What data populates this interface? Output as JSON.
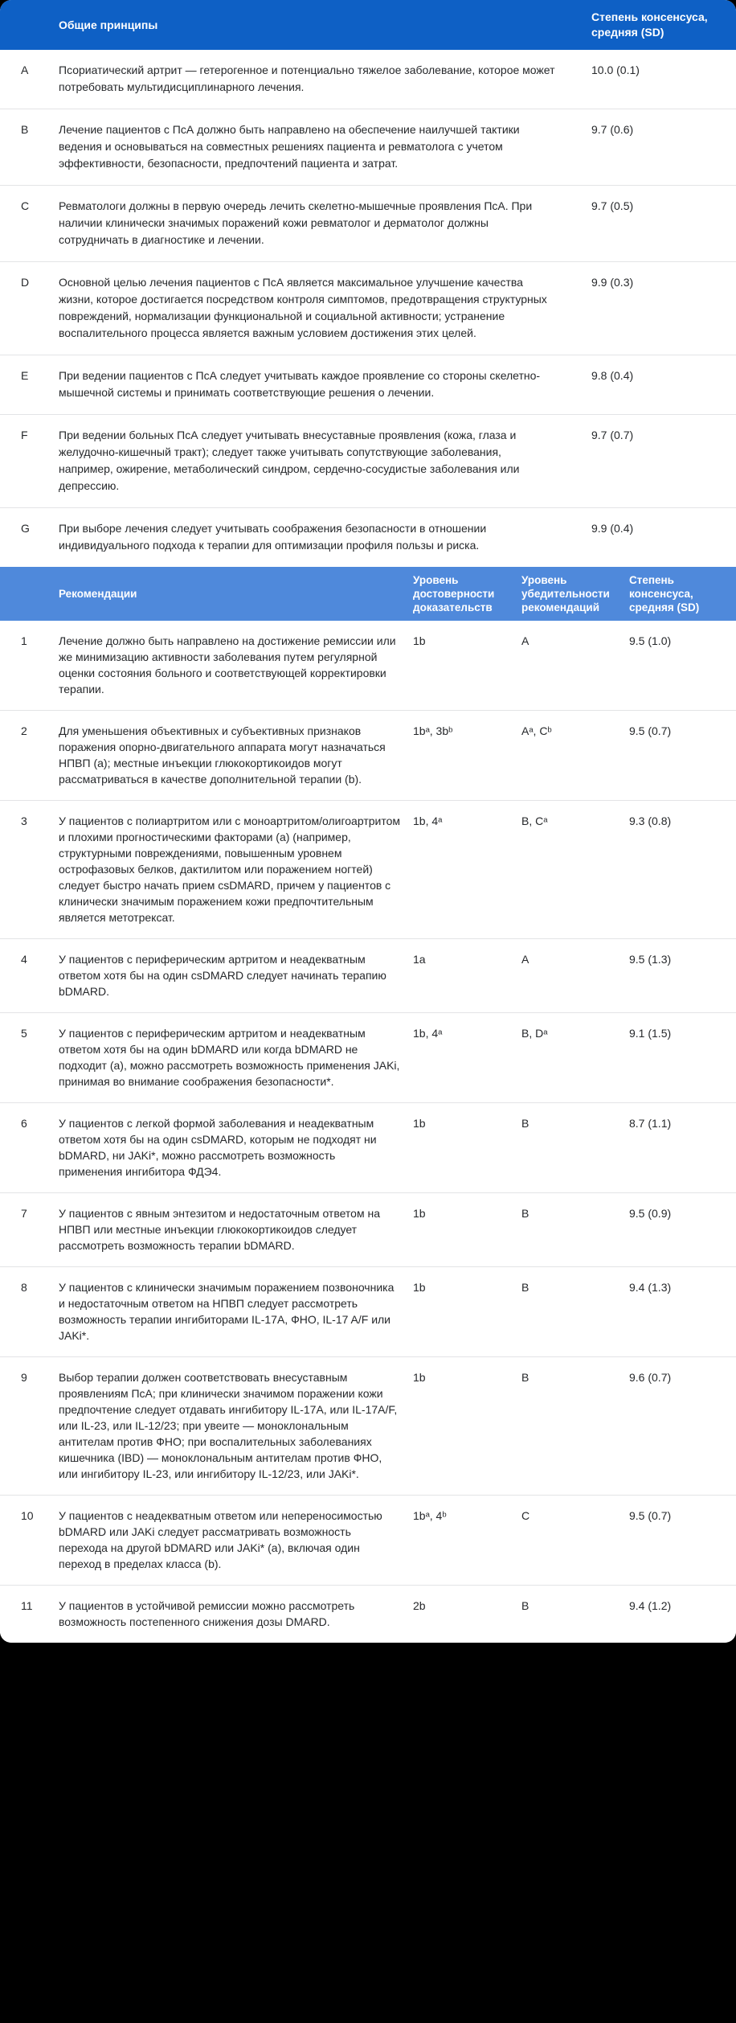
{
  "colors": {
    "background": "#000000",
    "card": "#ffffff",
    "principles_header_blue": "#0e60c5",
    "recommendations_header_blue": "#4f89db",
    "divider": "#e3e4e6",
    "text": "#26282b",
    "header_text": "#ffffff"
  },
  "principles_table": {
    "header": {
      "title": "Общие принципы",
      "consensus": "Степень консенсуса, средняя (SD)"
    },
    "rows": [
      {
        "label": "A",
        "text": "Псориатический артрит — гетерогенное и потенциально тяжелое заболевание, которое может потребовать мультидисциплинарного лечения.",
        "consensus": "10.0 (0.1)"
      },
      {
        "label": "B",
        "text": "Лечение пациентов с ПсА должно быть направлено на обеспечение наилучшей тактики ведения и основываться на совместных решениях пациента и ревматолога с учетом эффективности, безопасности, предпочтений пациента и затрат.",
        "consensus": "9.7 (0.6)"
      },
      {
        "label": "C",
        "text": "Ревматологи должны в первую очередь лечить скелетно-мышечные проявления ПсА. При наличии клинически значимых поражений кожи ревматолог и дерматолог должны сотрудничать в диагностике и лечении.",
        "consensus": "9.7 (0.5)"
      },
      {
        "label": "D",
        "text": "Основной целью лечения пациентов с ПсА является максимальное улучшение качества жизни, которое достигается посредством контроля симптомов, предотвращения структурных повреждений, нормализации функциональной и социальной активности; устранение воспалительного процесса является важным условием достижения этих целей.",
        "consensus": "9.9 (0.3)"
      },
      {
        "label": "E",
        "text": "При ведении пациентов с ПсА следует учитывать каждое проявление со стороны скелетно-мышечной системы и принимать соответствующие решения о лечении.",
        "consensus": "9.8 (0.4)"
      },
      {
        "label": "F",
        "text": "При ведении больных ПсА следует учитывать внесуставные проявления (кожа, глаза и желудочно-кишечный тракт); следует также учитывать сопутствующие заболевания, например, ожирение, метаболический синдром, сердечно-сосудистые заболевания или депрессию.",
        "consensus": "9.7 (0.7)"
      },
      {
        "label": "G",
        "text": "При выборе лечения следует учитывать соображения безопасности в отношении индивидуального подхода к терапии для оптимизации профиля пользы и риска.",
        "consensus": "9.9 (0.4)"
      }
    ]
  },
  "recommendations_table": {
    "header": {
      "title": "Рекомендации",
      "evidence": "Уровень достоверности доказательств",
      "strength": "Уровень убедительности рекомендаций",
      "consensus": "Степень консенсуса, средняя (SD)"
    },
    "rows": [
      {
        "label": "1",
        "text": "Лечение должно быть направлено на достижение ремиссии или же минимизацию активности заболевания путем регулярной оценки состояния больного и соответствующей корректировки терапии.",
        "evidence": "1b",
        "strength": "A",
        "consensus": "9.5 (1.0)"
      },
      {
        "label": "2",
        "text": "Для уменьшения объективных и субъективных признаков поражения опорно-двигательного аппарата могут назначаться НПВП (a); местные инъекции глюкокортикоидов могут рассматриваться в качестве дополнительной терапии (b).",
        "evidence": "1bᵃ, 3bᵇ",
        "strength": "Aᵃ, Cᵇ",
        "consensus": "9.5 (0.7)"
      },
      {
        "label": "3",
        "text": "У пациентов с полиартритом или с моноартритом/олигоартритом и плохими прогностическими факторами (a) (например, структурными повреждениями, повышенным уровнем острофазовых белков, дактилитом или поражением ногтей) следует быстро начать прием csDMARD, причем у пациентов с клинически значимым поражением кожи предпочтительным является метотрексат.",
        "evidence": "1b, 4ᵃ",
        "strength": "B, Cᵃ",
        "consensus": "9.3 (0.8)"
      },
      {
        "label": "4",
        "text": "У пациентов с периферическим артритом и неадекватным ответом хотя бы на один csDMARD следует начинать терапию bDMARD.",
        "evidence": "1a",
        "strength": "A",
        "consensus": "9.5 (1.3)"
      },
      {
        "label": "5",
        "text": "У пациентов с периферическим артритом и неадекватным ответом хотя бы на один bDMARD или когда bDMARD не подходит (a), можно рассмотреть возможность применения JAKi, принимая во внимание соображения безопасности*.",
        "evidence": "1b, 4ᵃ",
        "strength": "B, Dᵃ",
        "consensus": "9.1 (1.5)"
      },
      {
        "label": "6",
        "text": "У пациентов с легкой формой заболевания и неадекватным ответом хотя бы на один csDMARD, которым не подходят ни bDMARD, ни JAKi*, можно рассмотреть возможность применения ингибитора ФДЭ4.",
        "evidence": "1b",
        "strength": "B",
        "consensus": "8.7 (1.1)"
      },
      {
        "label": "7",
        "text": "У пациентов с явным энтезитом и недостаточным ответом на НПВП или местные инъекции глюкокортикоидов следует рассмотреть возможность терапии bDMARD.",
        "evidence": "1b",
        "strength": "B",
        "consensus": "9.5 (0.9)"
      },
      {
        "label": "8",
        "text": "У пациентов с клинически значимым поражением позвоночника и недостаточным ответом на НПВП следует рассмотреть возможность терапии ингибиторами IL-17A, ФНО, IL-17 A/F или JAKi*.",
        "evidence": "1b",
        "strength": "B",
        "consensus": "9.4 (1.3)"
      },
      {
        "label": "9",
        "text": "Выбор терапии должен соответствовать внесуставным проявлениям ПсА; при клинически значимом поражении кожи предпочтение следует отдавать ингибитору IL-17A, или IL-17A/F, или IL-23, или IL-12/23; при увеите — моноклональным антителам против ФНО; при воспалительных заболеваниях кишечника (IBD) — моноклональным антителам против ФНО, или ингибитору IL-23, или ингибитору IL-12/23, или JAKi*.",
        "evidence": "1b",
        "strength": "B",
        "consensus": "9.6 (0.7)"
      },
      {
        "label": "10",
        "text": "У пациентов с неадекватным ответом или непереносимостью bDMARD или JAKi следует рассматривать возможность перехода на другой bDMARD или JAKi* (a), включая один переход в пределах класса (b).",
        "evidence": "1bᵃ, 4ᵇ",
        "strength": "C",
        "consensus": "9.5 (0.7)"
      },
      {
        "label": "11",
        "text": "У пациентов в устойчивой ремиссии можно рассмотреть возможность постепенного снижения дозы DMARD.",
        "evidence": "2b",
        "strength": "B",
        "consensus": "9.4 (1.2)"
      }
    ]
  }
}
